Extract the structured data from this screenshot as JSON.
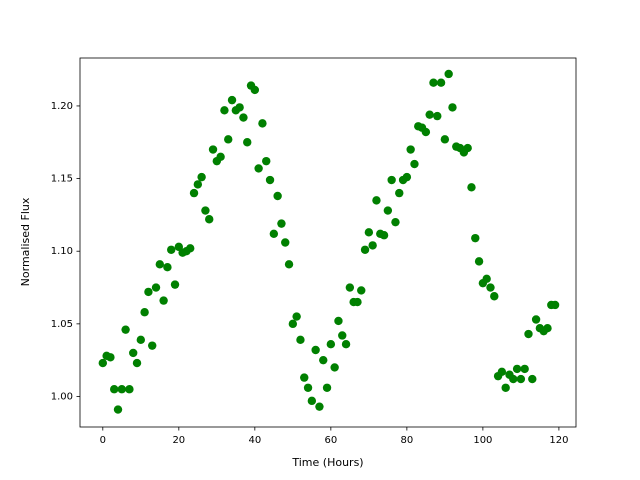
{
  "chart_data": {
    "type": "scatter",
    "x_label": "Time (Hours)",
    "y_label": "Normalised Flux",
    "x": [
      0,
      1,
      2,
      3,
      4,
      5,
      6,
      7,
      8,
      9,
      10,
      11,
      12,
      13,
      14,
      15,
      16,
      17,
      18,
      19,
      20,
      21,
      22,
      23,
      24,
      25,
      26,
      27,
      28,
      29,
      30,
      31,
      32,
      33,
      34,
      35,
      36,
      37,
      38,
      39,
      40,
      41,
      42,
      43,
      44,
      45,
      46,
      47,
      48,
      49,
      50,
      51,
      52,
      53,
      54,
      55,
      56,
      57,
      58,
      59,
      60,
      61,
      62,
      63,
      64,
      65,
      66,
      67,
      68,
      69,
      70,
      71,
      72,
      73,
      74,
      75,
      76,
      77,
      78,
      79,
      80,
      81,
      82,
      83,
      84,
      85,
      86,
      87,
      88,
      89,
      90,
      91,
      92,
      93,
      94,
      95,
      96,
      97,
      98,
      99,
      100,
      101,
      102,
      103,
      104,
      105,
      106,
      107,
      108,
      109,
      110,
      111,
      112,
      113,
      114,
      115,
      116,
      117,
      118,
      119
    ],
    "values": [
      1.023,
      1.028,
      1.027,
      1.005,
      0.991,
      1.005,
      1.046,
      1.005,
      1.03,
      1.023,
      1.039,
      1.058,
      1.072,
      1.035,
      1.075,
      1.091,
      1.066,
      1.089,
      1.101,
      1.077,
      1.103,
      1.099,
      1.1,
      1.102,
      1.14,
      1.146,
      1.151,
      1.128,
      1.122,
      1.17,
      1.162,
      1.165,
      1.197,
      1.177,
      1.204,
      1.197,
      1.199,
      1.192,
      1.175,
      1.214,
      1.211,
      1.157,
      1.188,
      1.162,
      1.149,
      1.112,
      1.138,
      1.119,
      1.106,
      1.091,
      1.05,
      1.055,
      1.039,
      1.013,
      1.006,
      0.997,
      1.032,
      0.993,
      1.025,
      1.006,
      1.036,
      1.02,
      1.052,
      1.042,
      1.036,
      1.075,
      1.065,
      1.065,
      1.073,
      1.101,
      1.113,
      1.104,
      1.135,
      1.112,
      1.111,
      1.128,
      1.149,
      1.12,
      1.14,
      1.149,
      1.151,
      1.17,
      1.16,
      1.186,
      1.185,
      1.182,
      1.194,
      1.216,
      1.193,
      1.216,
      1.177,
      1.222,
      1.199,
      1.172,
      1.171,
      1.168,
      1.171,
      1.144,
      1.109,
      1.093,
      1.078,
      1.081,
      1.075,
      1.069,
      1.014,
      1.017,
      1.006,
      1.015,
      1.012,
      1.019,
      1.012,
      1.019,
      1.043,
      1.012,
      1.053,
      1.047,
      1.045,
      1.047,
      1.063,
      1.063
    ],
    "color": "#008000",
    "xlim": [
      -6,
      124.5
    ],
    "ylim": [
      0.979,
      1.233
    ],
    "xticks": [
      0,
      20,
      40,
      60,
      80,
      100,
      120
    ],
    "yticks": [
      {
        "value": 1.0,
        "label": "1.00"
      },
      1.05,
      {
        "value": 1.1,
        "label": "1.10"
      },
      1.15,
      {
        "value": 1.2,
        "label": "1.20"
      }
    ],
    "grid": false
  }
}
